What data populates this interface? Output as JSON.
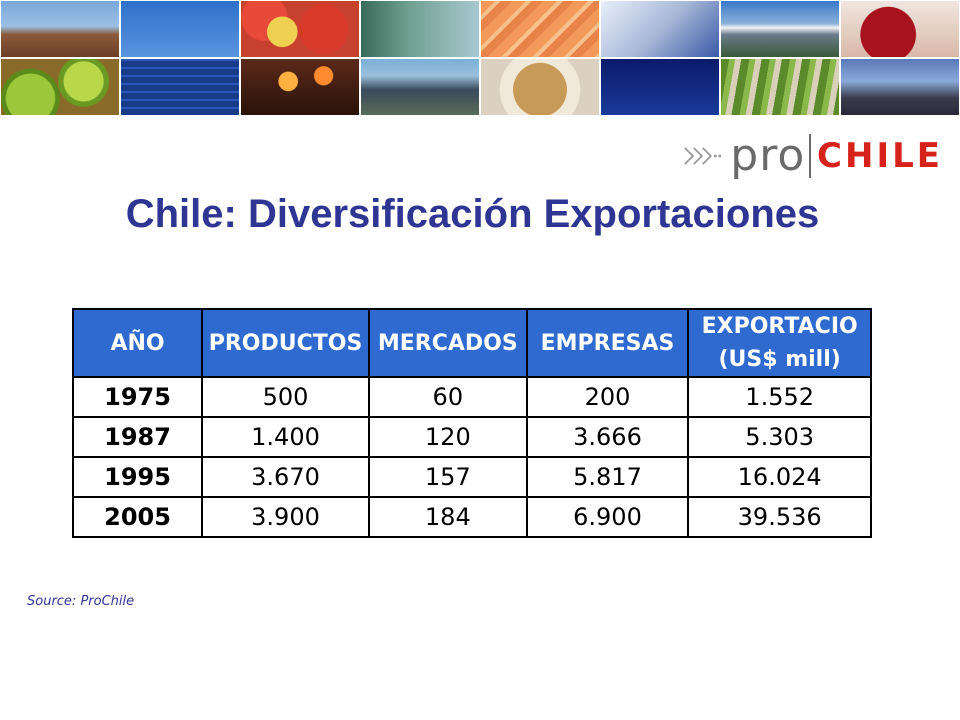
{
  "logo": {
    "text_pro": "pro",
    "text_chile": "CHILE"
  },
  "title": "Chile: Diversificación Exportaciones",
  "table": {
    "headers": [
      "AÑO",
      "PRODUCTOS",
      "MERCADOS",
      "EMPRESAS",
      "EXPORTACIO\n(US$ mill)"
    ],
    "rows": [
      [
        "1975",
        "500",
        "60",
        "200",
        "1.552"
      ],
      [
        "1987",
        "1.400",
        "120",
        "3.666",
        "5.303"
      ],
      [
        "1995",
        "3.670",
        "157",
        "5.817",
        "16.024"
      ],
      [
        "2005",
        "3.900",
        "184",
        "6.900",
        "39.536"
      ]
    ]
  },
  "source": "Source: ProChile",
  "colors": {
    "title": "#2e3592",
    "header_bg": "#2f6ad0",
    "logo_red": "#d7221c",
    "logo_gray": "#6a6a6a"
  }
}
